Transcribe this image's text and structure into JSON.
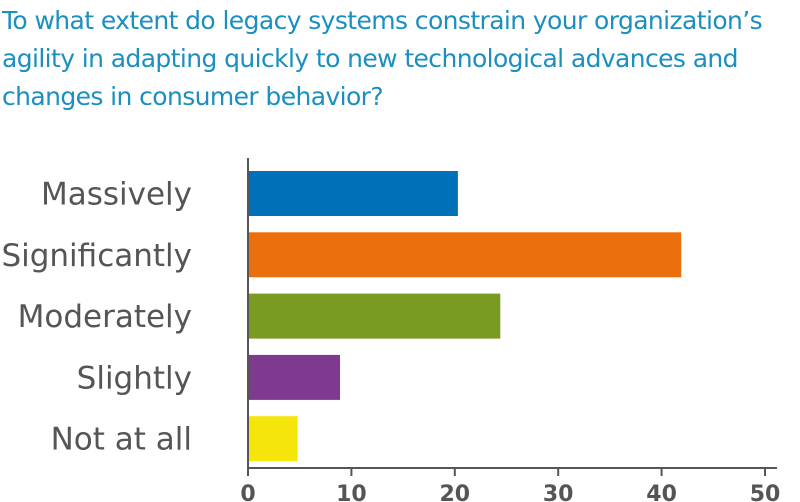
{
  "chart_data": {
    "type": "bar",
    "orientation": "horizontal",
    "title": "To what extent do legacy systems constrain your organization’s agility in adapting quickly to new technological advances and changes in consumer behavior?",
    "xlabel": "",
    "ylabel": "",
    "categories": [
      "Massively",
      "Significantly",
      "Moderately",
      "Slightly",
      "Not at all"
    ],
    "values": [
      20.3,
      41.9,
      24.4,
      8.9,
      4.8
    ],
    "colors": [
      "#0071b8",
      "#eb700d",
      "#7a9b22",
      "#7d3a8f",
      "#f5e50b"
    ],
    "xlim": [
      0,
      50
    ],
    "xticks": [
      0,
      10,
      20,
      30,
      40,
      50
    ],
    "grid": false,
    "legend": "none",
    "title_color": "#1a8fc0",
    "axis_color": "#555555"
  }
}
